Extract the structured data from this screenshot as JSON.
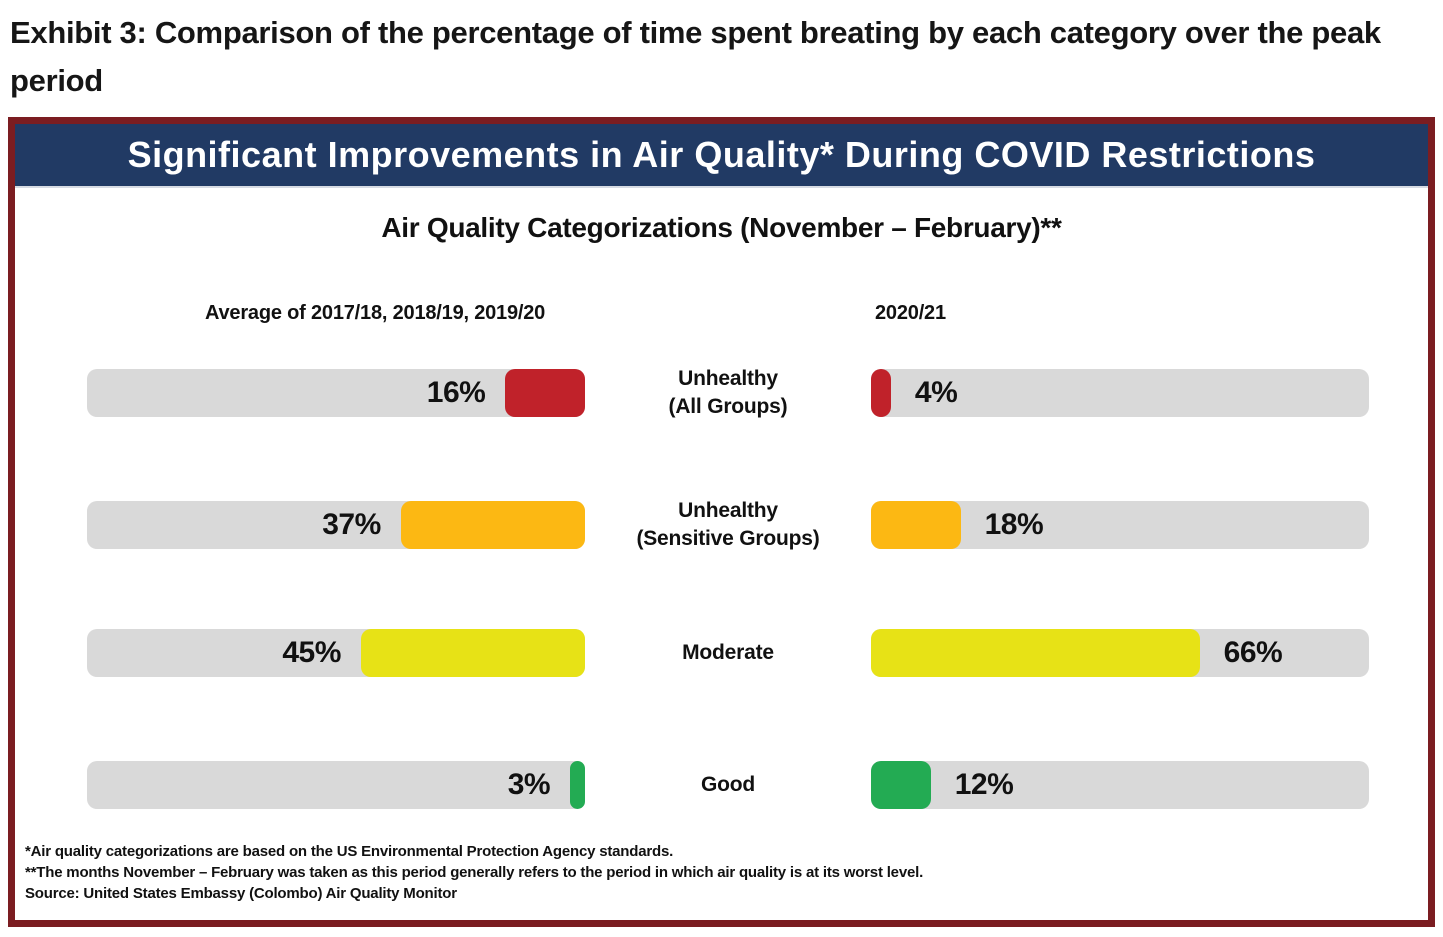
{
  "exhibit_title": "Exhibit 3: Comparison of the percentage of time spent breating by each category over the peak period",
  "panel": {
    "header": "Significant Improvements in Air Quality* During COVID Restrictions",
    "subtitle": "Air Quality Categorizations (November – February)**",
    "left_column_header": "Average of 2017/18, 2018/19, 2019/20",
    "right_column_header": "2020/21",
    "footnotes": [
      "*Air quality categorizations are based on the US Environmental Protection Agency standards.",
      "**The months November – February was taken as this period generally refers to the period in which air quality is at its worst level.",
      "Source: United States Embassy (Colombo) Air Quality Monitor"
    ]
  },
  "colors": {
    "border_maroon": "#7B1D21",
    "header_navy": "#213A64",
    "track_gray": "#D9D9D9",
    "unhealthy_all_red": "#C0222A",
    "unhealthy_sensitive_orange": "#FCB813",
    "moderate_yellow": "#E7E216",
    "good_green": "#23AB53"
  },
  "chart_data": {
    "type": "bar",
    "orientation": "horizontal-paired",
    "title": "Significant Improvements in Air Quality* During COVID Restrictions",
    "subtitle": "Air Quality Categorizations (November – February)**",
    "unit": "%",
    "xlim": [
      0,
      100
    ],
    "categories": [
      "Unhealthy (All Groups)",
      "Unhealthy (Sensitive Groups)",
      "Moderate",
      "Good"
    ],
    "series": [
      {
        "name": "Average of 2017/18, 2018/19, 2019/20",
        "values": [
          16,
          37,
          45,
          3
        ]
      },
      {
        "name": "2020/21",
        "values": [
          4,
          18,
          66,
          12
        ]
      }
    ],
    "rows": [
      {
        "label_line1": "Unhealthy",
        "label_line2": "(All Groups)",
        "left_pct": 16,
        "right_pct": 4,
        "left_label": "16%",
        "right_label": "4%",
        "color": "#C0222A"
      },
      {
        "label_line1": "Unhealthy",
        "label_line2": "(Sensitive Groups)",
        "left_pct": 37,
        "right_pct": 18,
        "left_label": "37%",
        "right_label": "18%",
        "color": "#FCB813"
      },
      {
        "label_line1": "Moderate",
        "label_line2": "",
        "left_pct": 45,
        "right_pct": 66,
        "left_label": "45%",
        "right_label": "66%",
        "color": "#E7E216"
      },
      {
        "label_line1": "Good",
        "label_line2": "",
        "left_pct": 3,
        "right_pct": 12,
        "left_label": "3%",
        "right_label": "12%",
        "color": "#23AB53"
      }
    ]
  }
}
